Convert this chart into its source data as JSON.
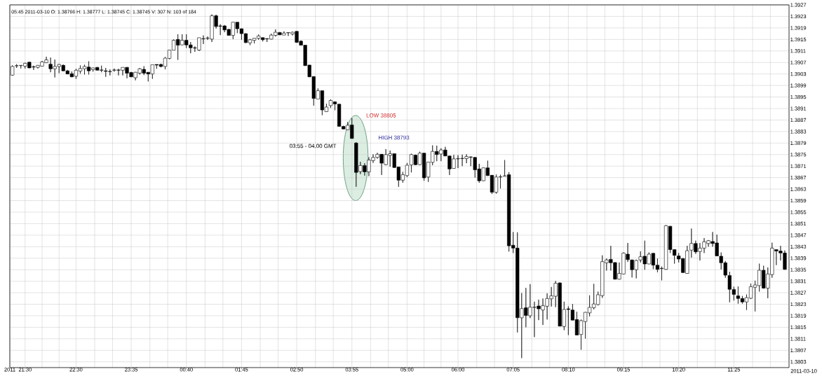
{
  "chart_data": {
    "type": "candlestick",
    "title": "05:45 2011-03-10 O: 1.38766 H: 1.38777 L: 1.38745 C: 1.38745 V: 307 N: 103 of 184",
    "color": "#000000",
    "grid": true,
    "xlim": [
      "2011-03-09T21:12",
      "2011-03-10T12:30"
    ],
    "ylim": [
      1.3801,
      1.3927
    ],
    "xticks": [
      {
        "value": "2011-03-09T21:12",
        "label": "2011"
      },
      {
        "value": "2011-03-09T21:30",
        "label": "21:30"
      },
      {
        "value": "2011-03-09T21:50",
        "label": null
      },
      {
        "value": "2011-03-09T22:10",
        "label": null
      },
      {
        "value": "2011-03-09T22:30",
        "label": "22:30"
      },
      {
        "value": "2011-03-09T22:52",
        "label": null
      },
      {
        "value": "2011-03-09T23:13",
        "label": null
      },
      {
        "value": "2011-03-09T23:35",
        "label": "23:35"
      },
      {
        "value": "2011-03-09T23:57",
        "label": null
      },
      {
        "value": "2011-03-10T00:18",
        "label": null
      },
      {
        "value": "2011-03-10T00:40",
        "label": "00:40"
      },
      {
        "value": "2011-03-10T01:02",
        "label": null
      },
      {
        "value": "2011-03-10T01:23",
        "label": null
      },
      {
        "value": "2011-03-10T01:45",
        "label": "01:45"
      },
      {
        "value": "2011-03-10T02:07",
        "label": null
      },
      {
        "value": "2011-03-10T02:28",
        "label": null
      },
      {
        "value": "2011-03-10T02:50",
        "label": "02:50"
      },
      {
        "value": "2011-03-10T03:12",
        "label": null
      },
      {
        "value": "2011-03-10T03:33",
        "label": null
      },
      {
        "value": "2011-03-10T03:55",
        "label": "03:55"
      },
      {
        "value": "2011-03-10T04:17",
        "label": null
      },
      {
        "value": "2011-03-10T04:38",
        "label": null
      },
      {
        "value": "2011-03-10T05:00",
        "label": "05:00"
      },
      {
        "value": "2011-03-10T05:20",
        "label": null
      },
      {
        "value": "2011-03-10T05:40",
        "label": null
      },
      {
        "value": "2011-03-10T06:00",
        "label": "06:00"
      },
      {
        "value": "2011-03-10T06:22",
        "label": null
      },
      {
        "value": "2011-03-10T06:43",
        "label": null
      },
      {
        "value": "2011-03-10T07:05",
        "label": "07:05"
      },
      {
        "value": "2011-03-10T07:27",
        "label": null
      },
      {
        "value": "2011-03-10T07:48",
        "label": null
      },
      {
        "value": "2011-03-10T08:10",
        "label": "08:10"
      },
      {
        "value": "2011-03-10T08:32",
        "label": null
      },
      {
        "value": "2011-03-10T08:53",
        "label": null
      },
      {
        "value": "2011-03-10T09:15",
        "label": "09:15"
      },
      {
        "value": "2011-03-10T09:37",
        "label": null
      },
      {
        "value": "2011-03-10T09:58",
        "label": null
      },
      {
        "value": "2011-03-10T10:20",
        "label": "10:20"
      },
      {
        "value": "2011-03-10T10:42",
        "label": null
      },
      {
        "value": "2011-03-10T11:03",
        "label": null
      },
      {
        "value": "2011-03-10T11:25",
        "label": "11:25"
      },
      {
        "value": "2011-03-10T11:47",
        "label": null
      },
      {
        "value": "2011-03-10T12:08",
        "label": null
      }
    ],
    "yticks": [
      1.3803,
      1.3807,
      1.3811,
      1.3815,
      1.3819,
      1.3823,
      1.3827,
      1.3831,
      1.3835,
      1.3839,
      1.3843,
      1.3847,
      1.3851,
      1.3855,
      1.3859,
      1.3863,
      1.3867,
      1.3871,
      1.3875,
      1.3879,
      1.3883,
      1.3887,
      1.3891,
      1.3895,
      1.3899,
      1.3903,
      1.3907,
      1.3911,
      1.3915,
      1.3919,
      1.3923,
      1.3927
    ],
    "annotations": [
      "03:55 - 04.00 GMT",
      "LOW 38805",
      "HIGH 38793",
      "2011-03-10"
    ],
    "x": [
      "2011-03-09T21:15",
      "2011-03-09T21:20",
      "2011-03-09T21:25",
      "2011-03-09T21:30",
      "2011-03-09T21:35",
      "2011-03-09T21:40",
      "2011-03-09T21:45",
      "2011-03-09T21:50",
      "2011-03-09T21:55",
      "2011-03-09T22:00",
      "2011-03-09T22:05",
      "2011-03-09T22:10",
      "2011-03-09T22:15",
      "2011-03-09T22:20",
      "2011-03-09T22:25",
      "2011-03-09T22:30",
      "2011-03-09T22:35",
      "2011-03-09T22:40",
      "2011-03-09T22:45",
      "2011-03-09T22:50",
      "2011-03-09T22:55",
      "2011-03-09T23:00",
      "2011-03-09T23:05",
      "2011-03-09T23:10",
      "2011-03-09T23:15",
      "2011-03-09T23:20",
      "2011-03-09T23:25",
      "2011-03-09T23:30",
      "2011-03-09T23:35",
      "2011-03-09T23:40",
      "2011-03-09T23:45",
      "2011-03-09T23:50",
      "2011-03-09T23:55",
      "2011-03-10T00:00",
      "2011-03-10T00:05",
      "2011-03-10T00:10",
      "2011-03-10T00:15",
      "2011-03-10T00:20",
      "2011-03-10T00:25",
      "2011-03-10T00:30",
      "2011-03-10T00:35",
      "2011-03-10T00:40",
      "2011-03-10T00:45",
      "2011-03-10T00:50",
      "2011-03-10T00:55",
      "2011-03-10T01:00",
      "2011-03-10T01:05",
      "2011-03-10T01:10",
      "2011-03-10T01:15",
      "2011-03-10T01:20",
      "2011-03-10T01:25",
      "2011-03-10T01:30",
      "2011-03-10T01:35",
      "2011-03-10T01:40",
      "2011-03-10T01:45",
      "2011-03-10T01:50",
      "2011-03-10T01:55",
      "2011-03-10T02:00",
      "2011-03-10T02:05",
      "2011-03-10T02:10",
      "2011-03-10T02:15",
      "2011-03-10T02:20",
      "2011-03-10T02:25",
      "2011-03-10T02:30",
      "2011-03-10T02:35",
      "2011-03-10T02:40",
      "2011-03-10T02:45",
      "2011-03-10T02:50",
      "2011-03-10T02:55",
      "2011-03-10T03:00",
      "2011-03-10T03:05",
      "2011-03-10T03:10",
      "2011-03-10T03:15",
      "2011-03-10T03:20",
      "2011-03-10T03:25",
      "2011-03-10T03:30",
      "2011-03-10T03:35",
      "2011-03-10T03:40",
      "2011-03-10T03:45",
      "2011-03-10T03:50",
      "2011-03-10T03:55",
      "2011-03-10T04:00",
      "2011-03-10T04:05",
      "2011-03-10T04:10",
      "2011-03-10T04:15",
      "2011-03-10T04:20",
      "2011-03-10T04:25",
      "2011-03-10T04:30",
      "2011-03-10T04:35",
      "2011-03-10T04:40",
      "2011-03-10T04:45",
      "2011-03-10T04:50",
      "2011-03-10T04:55",
      "2011-03-10T05:00",
      "2011-03-10T05:05",
      "2011-03-10T05:10",
      "2011-03-10T05:15",
      "2011-03-10T05:20",
      "2011-03-10T05:25",
      "2011-03-10T05:30",
      "2011-03-10T05:35",
      "2011-03-10T05:40",
      "2011-03-10T05:45",
      "2011-03-10T05:50",
      "2011-03-10T05:55",
      "2011-03-10T06:00",
      "2011-03-10T06:05",
      "2011-03-10T06:10",
      "2011-03-10T06:15",
      "2011-03-10T06:20",
      "2011-03-10T06:25",
      "2011-03-10T06:30",
      "2011-03-10T06:35",
      "2011-03-10T06:40",
      "2011-03-10T06:45",
      "2011-03-10T06:50",
      "2011-03-10T06:55",
      "2011-03-10T07:00",
      "2011-03-10T07:05",
      "2011-03-10T07:10",
      "2011-03-10T07:15",
      "2011-03-10T07:20",
      "2011-03-10T07:25",
      "2011-03-10T07:30",
      "2011-03-10T07:35",
      "2011-03-10T07:40",
      "2011-03-10T07:45",
      "2011-03-10T07:50",
      "2011-03-10T07:55",
      "2011-03-10T08:00",
      "2011-03-10T08:05",
      "2011-03-10T08:10",
      "2011-03-10T08:15",
      "2011-03-10T08:20",
      "2011-03-10T08:25",
      "2011-03-10T08:30",
      "2011-03-10T08:35",
      "2011-03-10T08:40",
      "2011-03-10T08:45",
      "2011-03-10T08:50",
      "2011-03-10T08:55",
      "2011-03-10T09:00",
      "2011-03-10T09:05",
      "2011-03-10T09:10",
      "2011-03-10T09:15",
      "2011-03-10T09:20",
      "2011-03-10T09:25",
      "2011-03-10T09:30",
      "2011-03-10T09:35",
      "2011-03-10T09:40",
      "2011-03-10T09:45",
      "2011-03-10T09:50",
      "2011-03-10T09:55",
      "2011-03-10T10:00",
      "2011-03-10T10:05",
      "2011-03-10T10:10",
      "2011-03-10T10:15",
      "2011-03-10T10:20",
      "2011-03-10T10:25",
      "2011-03-10T10:30",
      "2011-03-10T10:35",
      "2011-03-10T10:40",
      "2011-03-10T10:45",
      "2011-03-10T10:50",
      "2011-03-10T10:55",
      "2011-03-10T11:00",
      "2011-03-10T11:05",
      "2011-03-10T11:10",
      "2011-03-10T11:15",
      "2011-03-10T11:20",
      "2011-03-10T11:25",
      "2011-03-10T11:30",
      "2011-03-10T11:35",
      "2011-03-10T11:40",
      "2011-03-10T11:45",
      "2011-03-10T11:50",
      "2011-03-10T11:55",
      "2011-03-10T12:00",
      "2011-03-10T12:05",
      "2011-03-10T12:10",
      "2011-03-10T12:15",
      "2011-03-10T12:20",
      "2011-03-10T12:25"
    ],
    "ohlc": [
      [
        1.39026,
        1.3906,
        1.39024,
        1.39056
      ],
      [
        1.39058,
        1.39064,
        1.39051,
        1.39059
      ],
      [
        1.39059,
        1.3906,
        1.39049,
        1.3906
      ],
      [
        1.39057,
        1.39069,
        1.39049,
        1.39067
      ],
      [
        1.39071,
        1.39072,
        1.3905,
        1.39051
      ],
      [
        1.39055,
        1.39059,
        1.39044,
        1.39054
      ],
      [
        1.39053,
        1.39061,
        1.39049,
        1.3906
      ],
      [
        1.39057,
        1.39075,
        1.39056,
        1.39072
      ],
      [
        1.39069,
        1.3909,
        1.39068,
        1.39079
      ],
      [
        1.39064,
        1.39087,
        1.39036,
        1.39048
      ],
      [
        1.39048,
        1.3908,
        1.39018,
        1.39056
      ],
      [
        1.39056,
        1.39065,
        1.39033,
        1.39063
      ],
      [
        1.3906,
        1.39063,
        1.3904,
        1.39041
      ],
      [
        1.39041,
        1.39044,
        1.39029,
        1.3903
      ],
      [
        1.39031,
        1.39039,
        1.39019,
        1.3902
      ],
      [
        1.39022,
        1.39048,
        1.39013,
        1.39043
      ],
      [
        1.3904,
        1.3906,
        1.39031,
        1.39049
      ],
      [
        1.39048,
        1.39062,
        1.39028,
        1.39056
      ],
      [
        1.39054,
        1.39074,
        1.39028,
        1.39041
      ],
      [
        1.39045,
        1.39052,
        1.39038,
        1.39051
      ],
      [
        1.39053,
        1.39054,
        1.39042,
        1.39043
      ],
      [
        1.39044,
        1.39059,
        1.39036,
        1.39043
      ],
      [
        1.39041,
        1.39051,
        1.3902,
        1.39039
      ],
      [
        1.39039,
        1.39046,
        1.39025,
        1.39038
      ],
      [
        1.39043,
        1.39049,
        1.39038,
        1.39044
      ],
      [
        1.39044,
        1.39048,
        1.39025,
        1.39043
      ],
      [
        1.39043,
        1.39053,
        1.39025,
        1.39053
      ],
      [
        1.39053,
        1.39054,
        1.39015,
        1.39033
      ],
      [
        1.39035,
        1.39037,
        1.39019,
        1.3902
      ],
      [
        1.39017,
        1.39037,
        1.39008,
        1.39036
      ],
      [
        1.39033,
        1.39051,
        1.39028,
        1.39048
      ],
      [
        1.39046,
        1.39057,
        1.39026,
        1.39033
      ],
      [
        1.39036,
        1.39036,
        1.39004,
        1.3903
      ],
      [
        1.3903,
        1.39062,
        1.39013,
        1.39062
      ],
      [
        1.39063,
        1.39063,
        1.39048,
        1.39061
      ],
      [
        1.39063,
        1.39066,
        1.39053,
        1.39056
      ],
      [
        1.39056,
        1.39089,
        1.39046,
        1.39085
      ],
      [
        1.39084,
        1.39114,
        1.39081,
        1.39113
      ],
      [
        1.39113,
        1.3915,
        1.39113,
        1.39147
      ],
      [
        1.3915,
        1.39168,
        1.39079,
        1.3913
      ],
      [
        1.39131,
        1.39168,
        1.3913,
        1.39147
      ],
      [
        1.39147,
        1.39168,
        1.3912,
        1.39131
      ],
      [
        1.39131,
        1.39141,
        1.39102,
        1.39121
      ],
      [
        1.39121,
        1.39126,
        1.39107,
        1.3912
      ],
      [
        1.39113,
        1.39156,
        1.3911,
        1.39156
      ],
      [
        1.39152,
        1.39164,
        1.39134,
        1.39153
      ],
      [
        1.39154,
        1.3916,
        1.39148,
        1.39155
      ],
      [
        1.39151,
        1.39237,
        1.39141,
        1.39232
      ],
      [
        1.39232,
        1.39236,
        1.39188,
        1.39195
      ],
      [
        1.39197,
        1.39203,
        1.39165,
        1.39196
      ],
      [
        1.39197,
        1.392,
        1.39175,
        1.39183
      ],
      [
        1.39185,
        1.39186,
        1.39163,
        1.39164
      ],
      [
        1.39164,
        1.39211,
        1.39151,
        1.3921
      ],
      [
        1.3921,
        1.3921,
        1.39172,
        1.39187
      ],
      [
        1.39187,
        1.39188,
        1.39149,
        1.3917
      ],
      [
        1.3917,
        1.39171,
        1.39137,
        1.39139
      ],
      [
        1.39138,
        1.39152,
        1.3913,
        1.39149
      ],
      [
        1.39147,
        1.39155,
        1.39136,
        1.39154
      ],
      [
        1.39154,
        1.39167,
        1.39149,
        1.39162
      ],
      [
        1.39156,
        1.39157,
        1.39143,
        1.39149
      ],
      [
        1.39153,
        1.39153,
        1.39141,
        1.39152
      ],
      [
        1.39151,
        1.3917,
        1.3915,
        1.39165
      ],
      [
        1.39164,
        1.39185,
        1.3916,
        1.39175
      ],
      [
        1.39174,
        1.39176,
        1.39165,
        1.39166
      ],
      [
        1.39165,
        1.39178,
        1.39165,
        1.39172
      ],
      [
        1.39173,
        1.39174,
        1.39162,
        1.39174
      ],
      [
        1.39169,
        1.39177,
        1.39164,
        1.39175
      ],
      [
        1.39178,
        1.39179,
        1.39138,
        1.3914
      ],
      [
        1.39144,
        1.39147,
        1.39129,
        1.3913
      ],
      [
        1.3913,
        1.39131,
        1.39058,
        1.39059
      ],
      [
        1.39061,
        1.39062,
        1.39019,
        1.3902
      ],
      [
        1.39021,
        1.39022,
        1.3892,
        1.38945
      ],
      [
        1.38943,
        1.3898,
        1.38943,
        1.38972
      ],
      [
        1.38972,
        1.38972,
        1.38887,
        1.38905
      ],
      [
        1.38899,
        1.38927,
        1.38898,
        1.38915
      ],
      [
        1.3892,
        1.38942,
        1.38912,
        1.38938
      ],
      [
        1.38933,
        1.38935,
        1.38904,
        1.38926
      ],
      [
        1.38925,
        1.38926,
        1.38847,
        1.38848
      ],
      [
        1.38848,
        1.3885,
        1.38838,
        1.38839
      ],
      [
        1.38836,
        1.38863,
        1.38835,
        1.38852
      ],
      [
        1.38853,
        1.38877,
        1.38805,
        1.38806
      ],
      [
        1.3879,
        1.38793,
        1.38638,
        1.38688
      ],
      [
        1.38691,
        1.38725,
        1.38682,
        1.38712
      ],
      [
        1.38712,
        1.3872,
        1.38677,
        1.3869
      ],
      [
        1.3869,
        1.38741,
        1.38675,
        1.38731
      ],
      [
        1.38729,
        1.38751,
        1.38721,
        1.3874
      ],
      [
        1.3874,
        1.38756,
        1.38736,
        1.38751
      ],
      [
        1.38751,
        1.38752,
        1.38679,
        1.3872
      ],
      [
        1.38715,
        1.38769,
        1.38713,
        1.3875
      ],
      [
        1.38747,
        1.38764,
        1.38708,
        1.38753
      ],
      [
        1.38753,
        1.38754,
        1.38704,
        1.38705
      ],
      [
        1.38707,
        1.38708,
        1.38638,
        1.38661
      ],
      [
        1.38661,
        1.3869,
        1.38652,
        1.3868
      ],
      [
        1.38677,
        1.38721,
        1.38672,
        1.38713
      ],
      [
        1.38714,
        1.38753,
        1.38688,
        1.3875
      ],
      [
        1.38748,
        1.3875,
        1.38713,
        1.38715
      ],
      [
        1.38715,
        1.3876,
        1.38713,
        1.38755
      ],
      [
        1.38755,
        1.38756,
        1.38659,
        1.38669
      ],
      [
        1.38672,
        1.38725,
        1.38655,
        1.38724
      ],
      [
        1.38723,
        1.38782,
        1.38713,
        1.38761
      ],
      [
        1.38761,
        1.38781,
        1.38727,
        1.3875
      ],
      [
        1.38752,
        1.38772,
        1.38727,
        1.38766
      ],
      [
        1.38766,
        1.38777,
        1.38745,
        1.38745
      ],
      [
        1.38745,
        1.38746,
        1.38679,
        1.387
      ],
      [
        1.38702,
        1.38749,
        1.38701,
        1.38735
      ],
      [
        1.38735,
        1.38748,
        1.38703,
        1.38736
      ],
      [
        1.38736,
        1.3875,
        1.3871,
        1.38737
      ],
      [
        1.38736,
        1.38751,
        1.3872,
        1.38743
      ],
      [
        1.38742,
        1.38743,
        1.3871,
        1.38741
      ],
      [
        1.3874,
        1.38741,
        1.3867,
        1.38697
      ],
      [
        1.387,
        1.38718,
        1.38652,
        1.38659
      ],
      [
        1.38659,
        1.38705,
        1.38658,
        1.38704
      ],
      [
        1.38704,
        1.38729,
        1.38676,
        1.38677
      ],
      [
        1.38678,
        1.38679,
        1.38613,
        1.38619
      ],
      [
        1.38619,
        1.38681,
        1.38614,
        1.38672
      ],
      [
        1.38672,
        1.3868,
        1.38632,
        1.38673
      ],
      [
        1.38675,
        1.38731,
        1.38675,
        1.38676
      ],
      [
        1.3868,
        1.38689,
        1.38413,
        1.38433
      ],
      [
        1.38435,
        1.38481,
        1.38408,
        1.38425
      ],
      [
        1.38425,
        1.3848,
        1.38132,
        1.38183
      ],
      [
        1.38183,
        1.38269,
        1.38043,
        1.38215
      ],
      [
        1.38218,
        1.38287,
        1.3815,
        1.38191
      ],
      [
        1.3819,
        1.383,
        1.38182,
        1.3822
      ],
      [
        1.38219,
        1.38239,
        1.38116,
        1.3822
      ],
      [
        1.38224,
        1.38246,
        1.38175,
        1.38214
      ],
      [
        1.3821,
        1.3825,
        1.38158,
        1.38225
      ],
      [
        1.38223,
        1.38268,
        1.38177,
        1.3825
      ],
      [
        1.38249,
        1.3829,
        1.38222,
        1.38259
      ],
      [
        1.38258,
        1.38311,
        1.3822,
        1.38303
      ],
      [
        1.38304,
        1.38306,
        1.38153,
        1.38154
      ],
      [
        1.38153,
        1.38239,
        1.3814,
        1.38212
      ],
      [
        1.38214,
        1.38223,
        1.38123,
        1.38212
      ],
      [
        1.3821,
        1.38231,
        1.38174,
        1.38175
      ],
      [
        1.38177,
        1.38204,
        1.38122,
        1.38123
      ],
      [
        1.38125,
        1.38177,
        1.38072,
        1.38173
      ],
      [
        1.3817,
        1.38203,
        1.38111,
        1.38202
      ],
      [
        1.382,
        1.38261,
        1.38188,
        1.38219
      ],
      [
        1.38218,
        1.38301,
        1.38212,
        1.38231
      ],
      [
        1.38229,
        1.38274,
        1.38226,
        1.38263
      ],
      [
        1.3826,
        1.384,
        1.38252,
        1.38378
      ],
      [
        1.38374,
        1.38389,
        1.38347,
        1.38384
      ],
      [
        1.38386,
        1.38433,
        1.38347,
        1.38374
      ],
      [
        1.38375,
        1.38376,
        1.38316,
        1.38317
      ],
      [
        1.38317,
        1.38375,
        1.38316,
        1.38337
      ],
      [
        1.38335,
        1.3841,
        1.38334,
        1.38408
      ],
      [
        1.38404,
        1.38443,
        1.38377,
        1.38385
      ],
      [
        1.38384,
        1.38385,
        1.38323,
        1.3835
      ],
      [
        1.3835,
        1.38385,
        1.3832,
        1.38382
      ],
      [
        1.38384,
        1.38414,
        1.38375,
        1.38395
      ],
      [
        1.38397,
        1.38451,
        1.3835,
        1.3837
      ],
      [
        1.3837,
        1.3841,
        1.38369,
        1.38404
      ],
      [
        1.38407,
        1.38408,
        1.38352,
        1.38366
      ],
      [
        1.38366,
        1.38389,
        1.38341,
        1.38351
      ],
      [
        1.38355,
        1.38361,
        1.38313,
        1.38354
      ],
      [
        1.38351,
        1.38505,
        1.3835,
        1.38503
      ],
      [
        1.38501,
        1.38502,
        1.38408,
        1.3842
      ],
      [
        1.3842,
        1.38421,
        1.38371,
        1.384
      ],
      [
        1.38398,
        1.38408,
        1.38375,
        1.38387
      ],
      [
        1.38389,
        1.3839,
        1.38339,
        1.3834
      ],
      [
        1.38337,
        1.38433,
        1.38336,
        1.38416
      ],
      [
        1.38418,
        1.38493,
        1.38392,
        1.38441
      ],
      [
        1.38441,
        1.38451,
        1.38405,
        1.38412
      ],
      [
        1.38413,
        1.38443,
        1.38382,
        1.38425
      ],
      [
        1.38425,
        1.3846,
        1.38408,
        1.38447
      ],
      [
        1.38441,
        1.38453,
        1.3843,
        1.38451
      ],
      [
        1.38448,
        1.38481,
        1.3843,
        1.38441
      ],
      [
        1.38443,
        1.38472,
        1.38397,
        1.38398
      ],
      [
        1.38397,
        1.3841,
        1.38351,
        1.38374
      ],
      [
        1.38374,
        1.3838,
        1.38322,
        1.38331
      ],
      [
        1.3833,
        1.38343,
        1.38237,
        1.38282
      ],
      [
        1.38281,
        1.38291,
        1.38243,
        1.38264
      ],
      [
        1.38259,
        1.38292,
        1.38232,
        1.3825
      ],
      [
        1.3825,
        1.38259,
        1.38232,
        1.38238
      ],
      [
        1.38238,
        1.38264,
        1.3821,
        1.38253
      ],
      [
        1.38251,
        1.38302,
        1.38248,
        1.38291
      ],
      [
        1.38289,
        1.38312,
        1.38205,
        1.38297
      ],
      [
        1.38295,
        1.38371,
        1.38274,
        1.38348
      ],
      [
        1.38348,
        1.38364,
        1.38284,
        1.38286
      ],
      [
        1.38286,
        1.38358,
        1.38251,
        1.38335
      ],
      [
        1.38333,
        1.38444,
        1.38322,
        1.38425
      ],
      [
        1.3842,
        1.38421,
        1.38366,
        1.38415
      ],
      [
        1.38415,
        1.38433,
        1.38382,
        1.38408
      ],
      [
        1.38408,
        1.38417,
        1.3835,
        1.38351
      ]
    ]
  }
}
